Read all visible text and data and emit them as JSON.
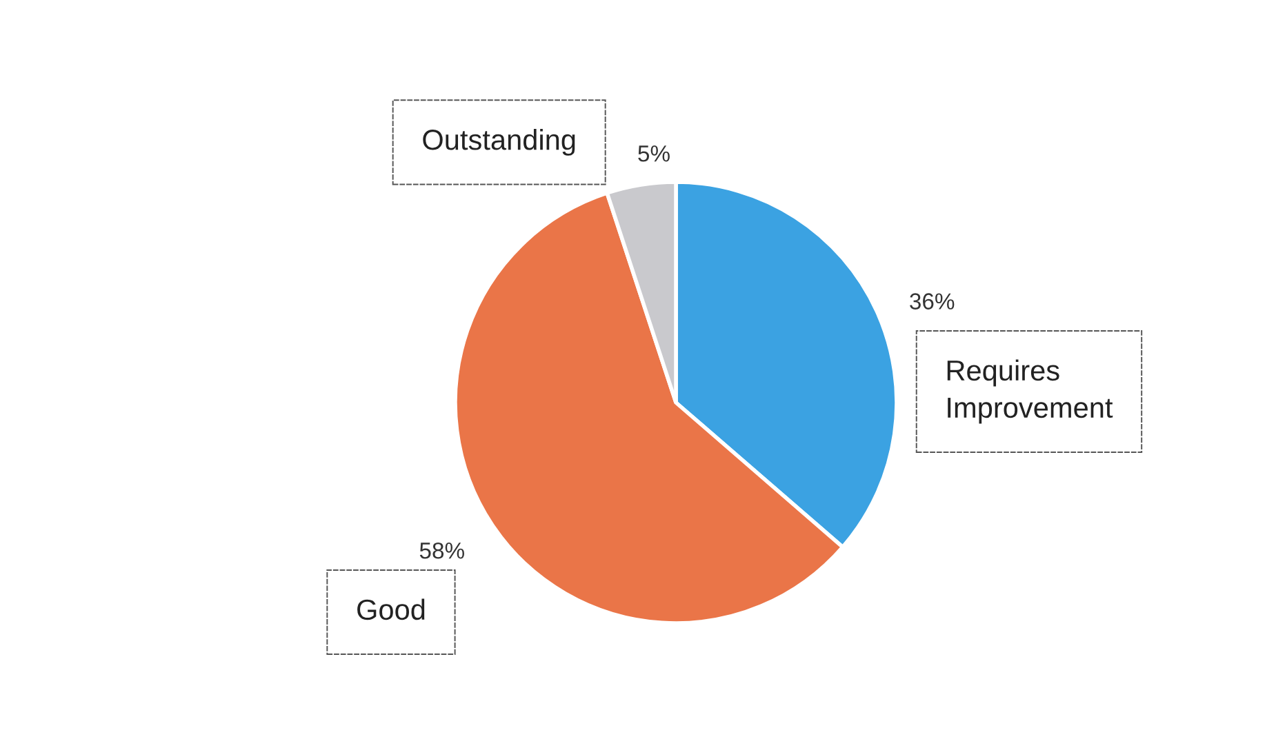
{
  "chart_data": {
    "type": "pie",
    "categories": [
      "Requires Improvement",
      "Good",
      "Outstanding"
    ],
    "values": [
      36,
      58,
      5
    ],
    "colors": [
      "#3ba2e2",
      "#ea7548",
      "#c9c9cd"
    ],
    "value_labels": [
      "36%",
      "58%",
      "5%"
    ],
    "legend": false
  }
}
